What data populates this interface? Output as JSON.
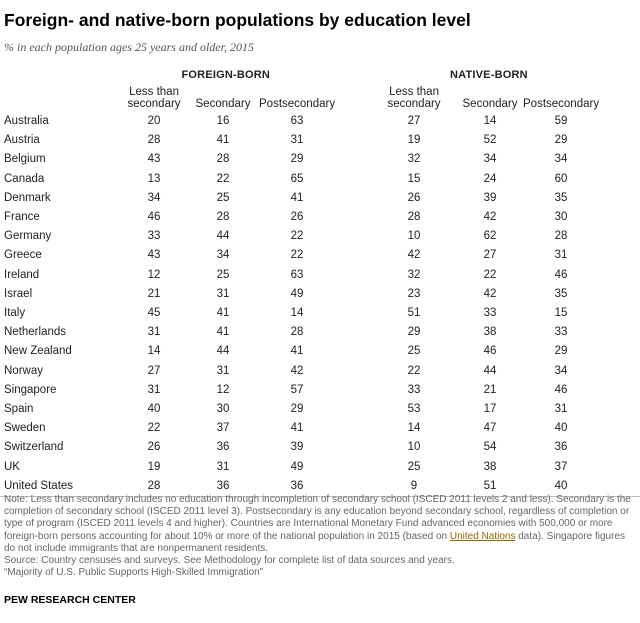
{
  "title": "Foreign- and native-born populations by education level",
  "subtitle": "% in each population ages 25 years and older, 2015",
  "chart_data": {
    "type": "table",
    "groups": [
      "FOREIGN-BORN",
      "NATIVE-BORN"
    ],
    "columns": [
      "Less than secondary",
      "Secondary",
      "Postsecondary"
    ],
    "columns_display": [
      [
        "Less than",
        "secondary"
      ],
      [
        "Secondary"
      ],
      [
        "Postsecondary"
      ]
    ],
    "rows": [
      {
        "country": "Australia",
        "foreign": [
          20,
          16,
          63
        ],
        "native": [
          27,
          14,
          59
        ]
      },
      {
        "country": "Austria",
        "foreign": [
          28,
          41,
          31
        ],
        "native": [
          19,
          52,
          29
        ]
      },
      {
        "country": "Belgium",
        "foreign": [
          43,
          28,
          29
        ],
        "native": [
          32,
          34,
          34
        ]
      },
      {
        "country": "Canada",
        "foreign": [
          13,
          22,
          65
        ],
        "native": [
          15,
          24,
          60
        ]
      },
      {
        "country": "Denmark",
        "foreign": [
          34,
          25,
          41
        ],
        "native": [
          26,
          39,
          35
        ]
      },
      {
        "country": "France",
        "foreign": [
          46,
          28,
          26
        ],
        "native": [
          28,
          42,
          30
        ]
      },
      {
        "country": "Germany",
        "foreign": [
          33,
          44,
          22
        ],
        "native": [
          10,
          62,
          28
        ]
      },
      {
        "country": "Greece",
        "foreign": [
          43,
          34,
          22
        ],
        "native": [
          42,
          27,
          31
        ]
      },
      {
        "country": "Ireland",
        "foreign": [
          12,
          25,
          63
        ],
        "native": [
          32,
          22,
          46
        ]
      },
      {
        "country": "Israel",
        "foreign": [
          21,
          31,
          49
        ],
        "native": [
          23,
          42,
          35
        ]
      },
      {
        "country": "Italy",
        "foreign": [
          45,
          41,
          14
        ],
        "native": [
          51,
          33,
          15
        ]
      },
      {
        "country": "Netherlands",
        "foreign": [
          31,
          41,
          28
        ],
        "native": [
          29,
          38,
          33
        ]
      },
      {
        "country": "New Zealand",
        "foreign": [
          14,
          44,
          41
        ],
        "native": [
          25,
          46,
          29
        ]
      },
      {
        "country": "Norway",
        "foreign": [
          27,
          31,
          42
        ],
        "native": [
          22,
          44,
          34
        ]
      },
      {
        "country": "Singapore",
        "foreign": [
          31,
          12,
          57
        ],
        "native": [
          33,
          21,
          46
        ]
      },
      {
        "country": "Spain",
        "foreign": [
          40,
          30,
          29
        ],
        "native": [
          53,
          17,
          31
        ]
      },
      {
        "country": "Sweden",
        "foreign": [
          22,
          37,
          41
        ],
        "native": [
          14,
          47,
          40
        ]
      },
      {
        "country": "Switzerland",
        "foreign": [
          26,
          36,
          39
        ],
        "native": [
          10,
          54,
          36
        ]
      },
      {
        "country": "UK",
        "foreign": [
          19,
          31,
          49
        ],
        "native": [
          25,
          38,
          37
        ]
      },
      {
        "country": "United States",
        "foreign": [
          28,
          36,
          36
        ],
        "native": [
          9,
          51,
          40
        ]
      }
    ]
  },
  "note_text": "Note: Less than secondary includes no education through incompletion of secondary school (ISCED 2011 levels 2 and less). Secondary is the completion of secondary school (ISCED 2011 level 3). Postsecondary is any education beyond secondary school, regardless of completion or type of program (ISCED 2011 levels 4 and higher). Countries are  International Monetary Fund advanced economies with 500,000 or more foreign-born persons accounting for about 10% or more of the national population in 2015 (based on ",
  "note_link": "United Nations",
  "note_text_end": " data). Singapore figures do not include immigrants that are nonpermanent residents.",
  "source": "Source: Country censuses and surveys. See Methodology for complete list of data sources and years.",
  "report": "“Majority of U.S. Public Supports High-Skilled Immigration”",
  "brand": "PEW RESEARCH CENTER"
}
